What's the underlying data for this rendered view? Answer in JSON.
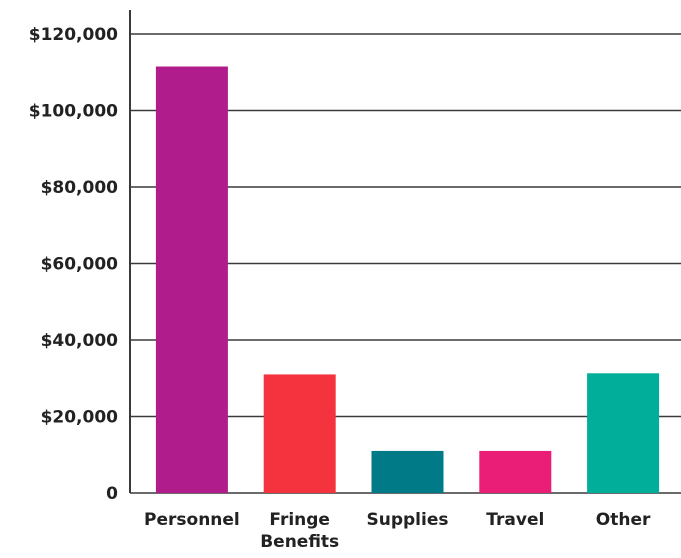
{
  "chart_data": {
    "type": "bar",
    "title": "",
    "xlabel": "",
    "ylabel": "",
    "categories": [
      [
        "Personnel"
      ],
      [
        "Fringe",
        "Benefits"
      ],
      [
        "Supplies"
      ],
      [
        "Travel"
      ],
      [
        "Other"
      ]
    ],
    "values": [
      111500,
      31000,
      11000,
      11000,
      31300
    ],
    "colors": [
      "#b01c8c",
      "#f5333f",
      "#007a87",
      "#ea1e77",
      "#00ae9a"
    ],
    "ylim": [
      0,
      120000
    ],
    "yticks": [
      0,
      20000,
      40000,
      60000,
      80000,
      100000,
      120000
    ],
    "ytick_labels": [
      "0",
      "$20,000",
      "$40,000",
      "$60,000",
      "$80,000",
      "$100,000",
      "$120,000"
    ],
    "grid": true,
    "legend": "none"
  }
}
